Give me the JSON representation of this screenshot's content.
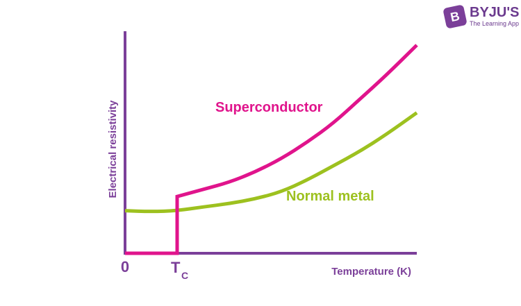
{
  "brand": {
    "name": "BYJU'S",
    "tagline": "The Learning App",
    "badge": "B"
  },
  "colors": {
    "axis": "#7b3f99",
    "superconductor": "#e0148c",
    "normal_metal": "#9dc11f"
  },
  "chart_data": {
    "type": "line",
    "ylabel": "Electrical resistivity",
    "xlabel": "Temperature (K)",
    "x_tick_origin": "0",
    "x_tick_tc": "T",
    "x_tick_tc_sub": "C",
    "tc": 1,
    "xlim": [
      0,
      5.6
    ],
    "ylim": [
      0,
      4.4
    ],
    "series": [
      {
        "name": "Superconductor",
        "values": [
          [
            0,
            0
          ],
          [
            1,
            0
          ],
          [
            1,
            1.2
          ],
          [
            1.5,
            1.35
          ],
          [
            2,
            1.5
          ],
          [
            2.5,
            1.72
          ],
          [
            3,
            2.0
          ],
          [
            3.5,
            2.35
          ],
          [
            4,
            2.75
          ],
          [
            4.5,
            3.25
          ],
          [
            5,
            3.75
          ],
          [
            5.6,
            4.4
          ]
        ]
      },
      {
        "name": "Normal metal",
        "values": [
          [
            0,
            0.9
          ],
          [
            0.5,
            0.88
          ],
          [
            1,
            0.9
          ],
          [
            1.5,
            0.98
          ],
          [
            2,
            1.05
          ],
          [
            2.5,
            1.15
          ],
          [
            3,
            1.3
          ],
          [
            3.5,
            1.55
          ],
          [
            4,
            1.85
          ],
          [
            4.5,
            2.15
          ],
          [
            5,
            2.5
          ],
          [
            5.6,
            2.97
          ]
        ]
      }
    ],
    "grid": false,
    "legend": "none"
  }
}
